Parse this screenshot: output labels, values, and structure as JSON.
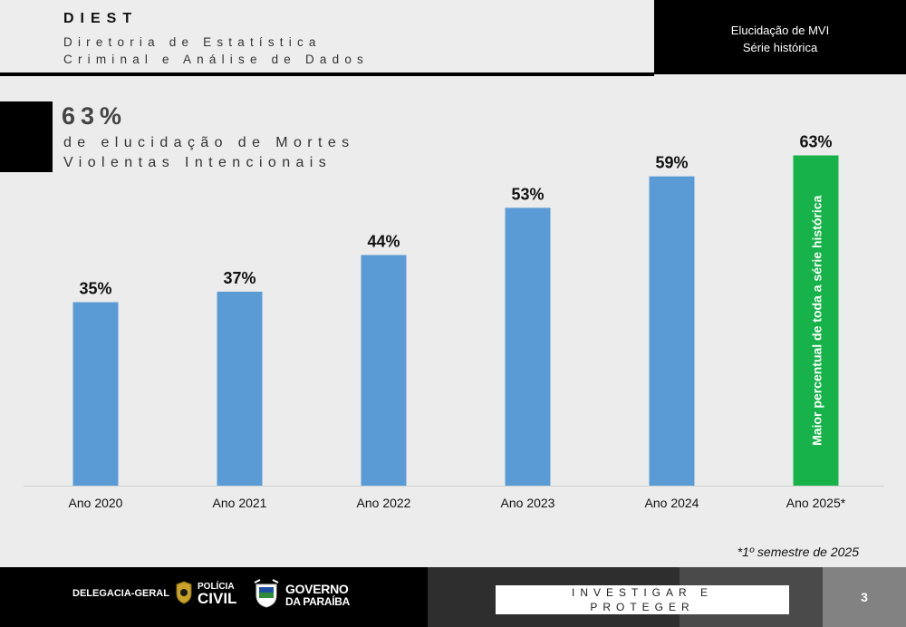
{
  "header": {
    "title": "DIEST",
    "subtitle_line1": "Diretoria de Estatística",
    "subtitle_line2": "Criminal e Análise de Dados",
    "right_line1": "Elucidação de MVI",
    "right_line2": "Série histórica"
  },
  "summary": {
    "percent": "63%",
    "desc_line1": "de elucidação de Mortes",
    "desc_line2": "Violentas Intencionais"
  },
  "chart_data": {
    "type": "bar",
    "title": "",
    "xlabel": "",
    "ylabel": "",
    "ylim": [
      0,
      70
    ],
    "categories": [
      "Ano 2020",
      "Ano 2021",
      "Ano 2022",
      "Ano 2023",
      "Ano 2024",
      "Ano 2025*"
    ],
    "values": [
      35,
      37,
      44,
      53,
      59,
      63
    ],
    "labels": [
      "35%",
      "37%",
      "44%",
      "53%",
      "59%",
      "63%"
    ],
    "colors": [
      "#5b9bd5",
      "#5b9bd5",
      "#5b9bd5",
      "#5b9bd5",
      "#5b9bd5",
      "#17b34a"
    ],
    "highlight_annotation": "Maior percentual de toda a série histórica",
    "footnote": "*1º semestre de 2025"
  },
  "footer": {
    "unit": "DELEGACIA-GERAL",
    "policia_top": "POLÍCIA",
    "policia_bottom": "CIVIL",
    "gov_line1": "GOVERNO",
    "gov_line2": "DA PARAÍBA",
    "motto_line1": "INVESTIGAR E",
    "motto_line2": "PROTEGER",
    "page_number": "3"
  },
  "colors": {
    "bar": "#5b9bd5",
    "highlight": "#17b34a",
    "dark": "#000000"
  }
}
